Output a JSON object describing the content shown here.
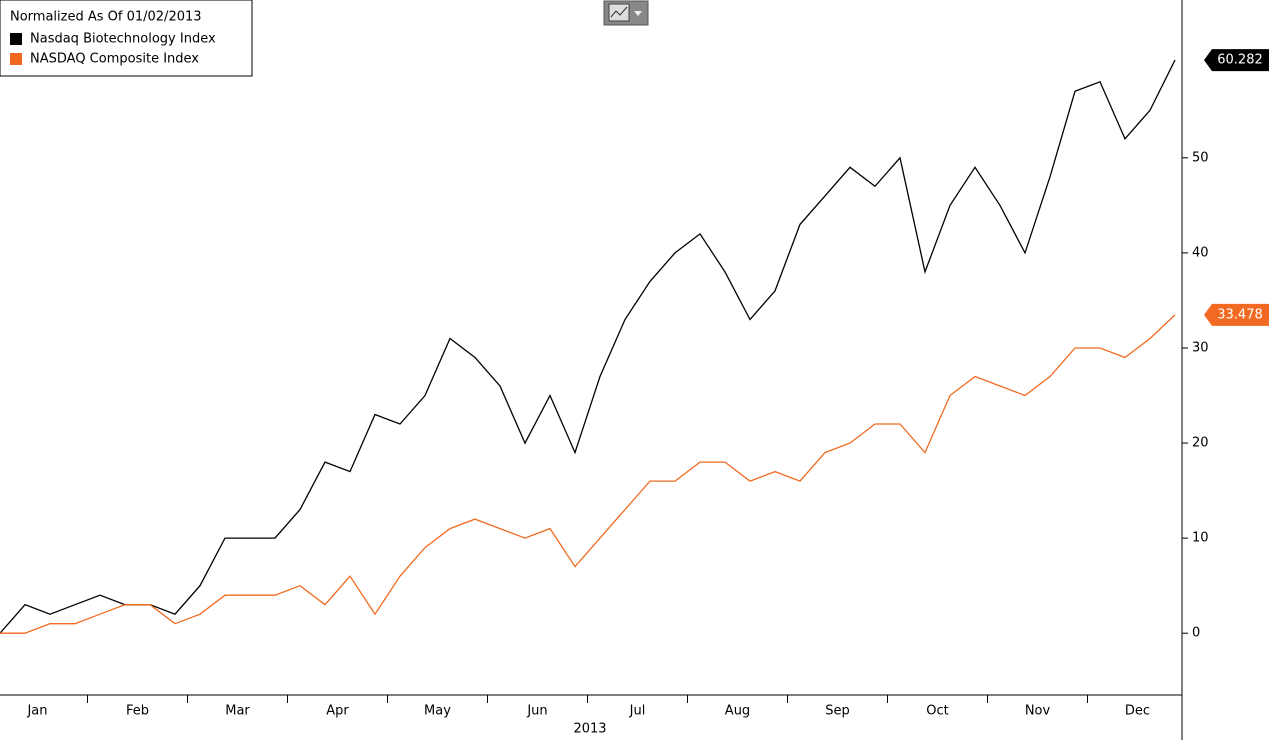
{
  "chart_data": {
    "type": "line",
    "legend_title": "Normalized As Of 01/02/2013",
    "x_label": "2013",
    "categories": [
      null,
      "Jan",
      null,
      null,
      null,
      "Feb",
      null,
      null,
      null,
      "Mar",
      null,
      null,
      null,
      "Apr",
      null,
      null,
      null,
      "May",
      null,
      null,
      null,
      "Jun",
      null,
      null,
      null,
      "Jul",
      null,
      null,
      null,
      "Aug",
      null,
      null,
      null,
      "Sep",
      null,
      null,
      null,
      "Oct",
      null,
      null,
      null,
      "Nov",
      null,
      null,
      null,
      "Dec",
      null,
      null
    ],
    "series": [
      {
        "name": "Nasdaq Biotechnology Index",
        "color": "#000000",
        "values": [
          0,
          3,
          2,
          3,
          4,
          3,
          3,
          2,
          5,
          10,
          10,
          10,
          13,
          18,
          17,
          23,
          22,
          25,
          31,
          29,
          26,
          20,
          25,
          19,
          27,
          33,
          37,
          40,
          42,
          38,
          33,
          36,
          43,
          46,
          49,
          47,
          50,
          38,
          45,
          49,
          45,
          40,
          48,
          57,
          58,
          52,
          55,
          60.282
        ]
      },
      {
        "name": "NASDAQ Composite Index",
        "color": "#f26a21",
        "values": [
          0,
          0,
          1,
          1,
          2,
          3,
          3,
          1,
          2,
          4,
          4,
          4,
          5,
          3,
          6,
          2,
          6,
          9,
          11,
          12,
          11,
          10,
          11,
          7,
          10,
          13,
          16,
          16,
          18,
          18,
          16,
          17,
          16,
          19,
          20,
          22,
          22,
          19,
          25,
          27,
          26,
          25,
          27,
          30,
          30,
          29,
          31,
          33.478
        ]
      }
    ],
    "ylim": [
      -6.5,
      66.6
    ],
    "yticks": [
      0,
      10,
      20,
      30,
      40,
      50
    ],
    "legend": "upper left"
  }
}
